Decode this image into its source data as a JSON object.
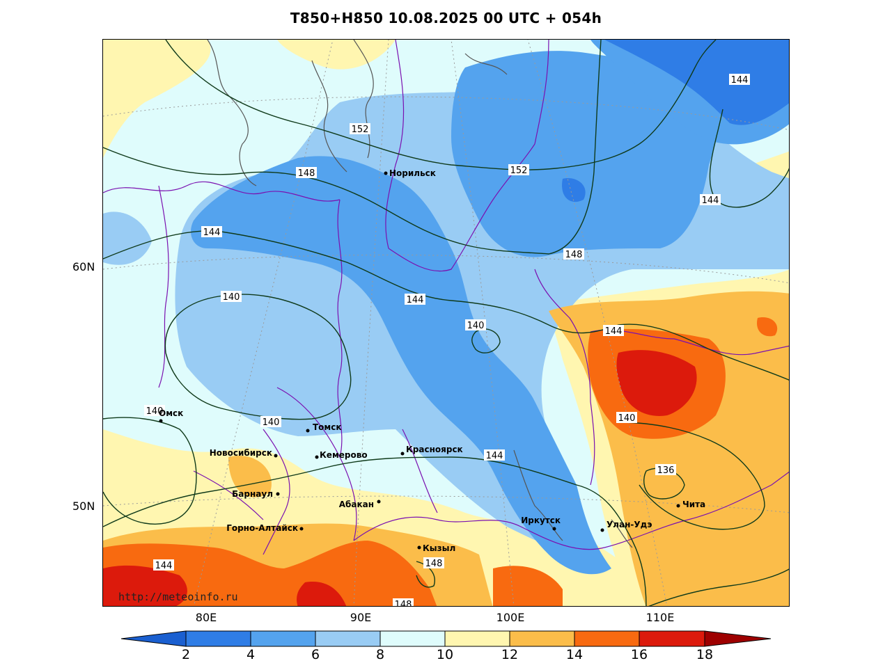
{
  "title": "T850+H850 10.08.2025 00 UTC + 054h",
  "watermark": "http://meteoinfo.ru",
  "axes": {
    "lat_labels": [
      "60N",
      "50N"
    ],
    "lon_labels": [
      "80E",
      "90E",
      "100E",
      "110E"
    ]
  },
  "colorbar": {
    "ticks": [
      "2",
      "4",
      "6",
      "8",
      "10",
      "12",
      "14",
      "16",
      "18"
    ],
    "colors": [
      "#1a5fd0",
      "#2f7de6",
      "#54a3ee",
      "#99ccf4",
      "#dffcfc",
      "#fff6b0",
      "#fbbd4a",
      "#f86a10",
      "#dc1a0c",
      "#9e0000"
    ]
  },
  "cities": [
    {
      "name": "Норильск"
    },
    {
      "name": "Омск"
    },
    {
      "name": "Томск"
    },
    {
      "name": "Новосибирск"
    },
    {
      "name": "Кемерово"
    },
    {
      "name": "Красноярск"
    },
    {
      "name": "Барнаул"
    },
    {
      "name": "Абакан"
    },
    {
      "name": "Горно-Алтайск"
    },
    {
      "name": "Кызыл"
    },
    {
      "name": "Иркутск"
    },
    {
      "name": "Улан-Удэ"
    },
    {
      "name": "Чита"
    }
  ],
  "isohypse_labels": [
    "152",
    "152",
    "148",
    "148",
    "144",
    "144",
    "144",
    "144",
    "144",
    "144",
    "140",
    "140",
    "140",
    "140",
    "140",
    "136",
    "148",
    "148",
    "144"
  ]
}
